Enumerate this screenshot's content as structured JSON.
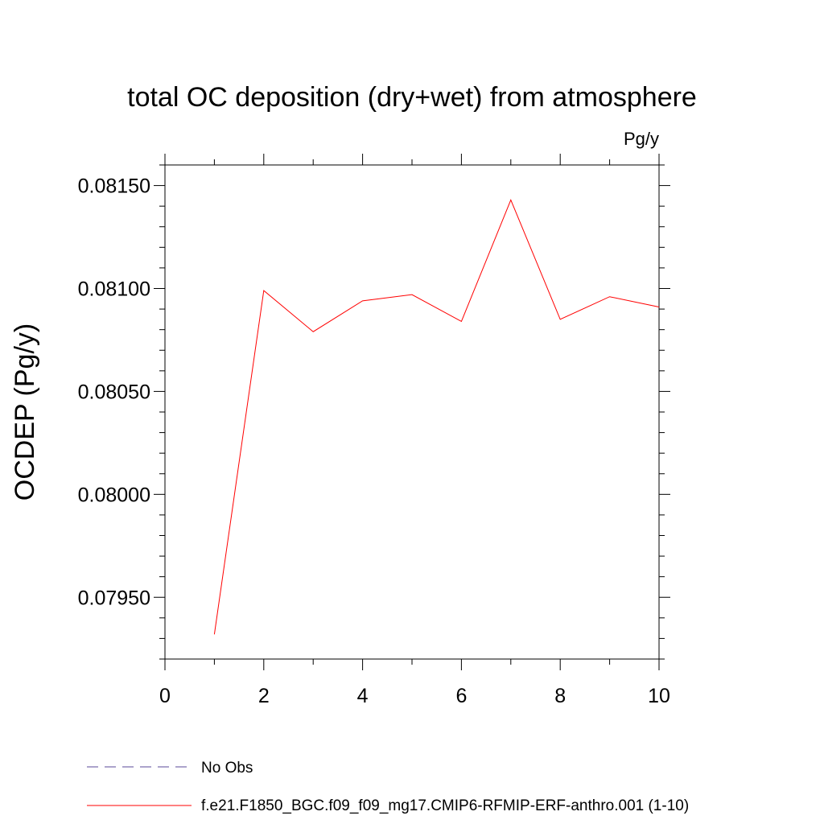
{
  "chart_data": {
    "type": "line",
    "title": "total OC deposition (dry+wet) from atmosphere",
    "units_label": "Pg/y",
    "ylabel": "OCDEP  (Pg/y)",
    "xlabel": "",
    "xlim": [
      0,
      10
    ],
    "ylim": [
      0.0792,
      0.0816
    ],
    "x_ticks": [
      0,
      2,
      4,
      6,
      8,
      10
    ],
    "x_tick_labels": [
      "0",
      "2",
      "4",
      "6",
      "8",
      "10"
    ],
    "y_ticks": [
      0.0795,
      0.08,
      0.0805,
      0.081,
      0.0815
    ],
    "y_tick_labels": [
      "0.07950",
      "0.08000",
      "0.08050",
      "0.08100",
      "0.08150"
    ],
    "grid": false,
    "legend_position": "bottom",
    "series": [
      {
        "name": "f.e21.F1850_BGC.f09_f09_mg17.CMIP6-RFMIP-ERF-anthro.001 (1-10)",
        "color": "#ff0000",
        "dash": "solid",
        "x": [
          1,
          2,
          3,
          4,
          5,
          6,
          7,
          8,
          9,
          10
        ],
        "values": [
          0.07932,
          0.08099,
          0.08079,
          0.08094,
          0.08097,
          0.08084,
          0.08143,
          0.08085,
          0.08096,
          0.08091
        ]
      }
    ],
    "legend": [
      {
        "label": "No Obs",
        "color": "#5a4a9a",
        "dash": "dashed"
      },
      {
        "label": "f.e21.F1850_BGC.f09_f09_mg17.CMIP6-RFMIP-ERF-anthro.001 (1-10)",
        "color": "#ff0000",
        "dash": "solid"
      }
    ]
  }
}
